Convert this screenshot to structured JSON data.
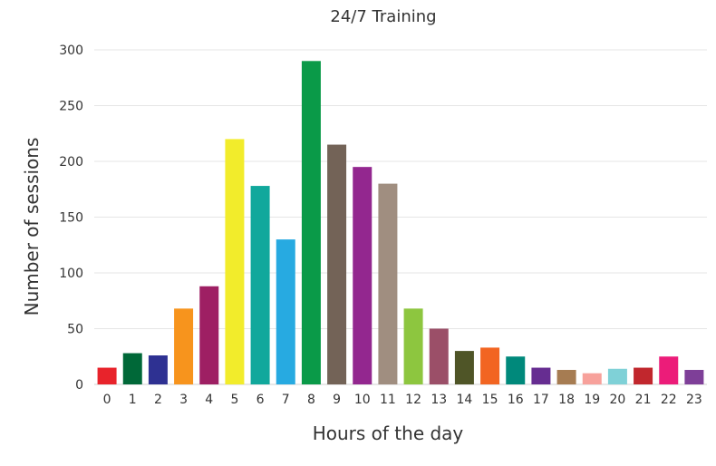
{
  "chart_data": {
    "type": "bar",
    "title": "24/7 Training",
    "xlabel": "Hours of the day",
    "ylabel": "Number of sessions",
    "ylim": [
      0,
      300
    ],
    "yticks": [
      0,
      50,
      100,
      150,
      200,
      250,
      300
    ],
    "grid": true,
    "legend": "none",
    "categories": [
      "0",
      "1",
      "2",
      "3",
      "4",
      "5",
      "6",
      "7",
      "8",
      "9",
      "10",
      "11",
      "12",
      "13",
      "14",
      "15",
      "16",
      "17",
      "18",
      "19",
      "20",
      "21",
      "22",
      "23"
    ],
    "values": [
      15,
      28,
      26,
      68,
      88,
      220,
      178,
      130,
      290,
      215,
      195,
      180,
      68,
      50,
      30,
      33,
      25,
      15,
      13,
      10,
      14,
      15,
      25,
      13
    ],
    "colors": [
      "#e8232b",
      "#006838",
      "#2e3192",
      "#f7941d",
      "#9e1f63",
      "#f2ec2b",
      "#11a89c",
      "#27aae1",
      "#0a9a48",
      "#736357",
      "#93278f",
      "#a08e80",
      "#8dc63f",
      "#9b4f68",
      "#4f5527",
      "#f26522",
      "#00897b",
      "#662d91",
      "#a67c52",
      "#f7a19b",
      "#7fd1d7",
      "#c1272d",
      "#ec1c79",
      "#7e3f98"
    ]
  }
}
